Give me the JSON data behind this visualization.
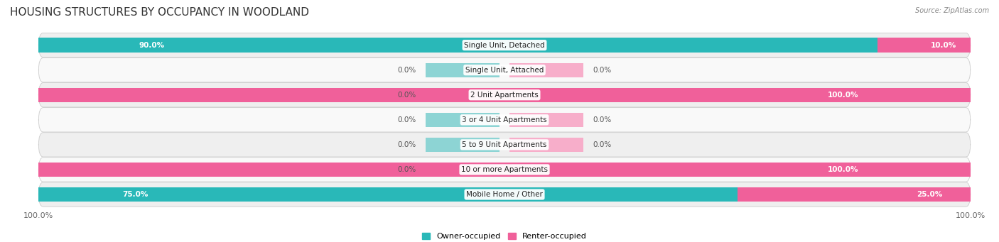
{
  "title": "HOUSING STRUCTURES BY OCCUPANCY IN WOODLAND",
  "source": "Source: ZipAtlas.com",
  "categories": [
    "Single Unit, Detached",
    "Single Unit, Attached",
    "2 Unit Apartments",
    "3 or 4 Unit Apartments",
    "5 to 9 Unit Apartments",
    "10 or more Apartments",
    "Mobile Home / Other"
  ],
  "owner_pct": [
    90.0,
    0.0,
    0.0,
    0.0,
    0.0,
    0.0,
    75.0
  ],
  "renter_pct": [
    10.0,
    0.0,
    100.0,
    0.0,
    0.0,
    100.0,
    25.0
  ],
  "owner_color": "#29b8b8",
  "renter_color": "#f0609a",
  "owner_color_light": "#8dd4d4",
  "renter_color_light": "#f7aeca",
  "row_bg_even": "#efefef",
  "row_bg_odd": "#f9f9f9",
  "title_fontsize": 11,
  "label_fontsize": 7.5,
  "pct_fontsize": 7.5,
  "axis_label_fontsize": 8,
  "figsize": [
    14.06,
    3.41
  ],
  "dpi": 100,
  "bar_height": 0.58
}
